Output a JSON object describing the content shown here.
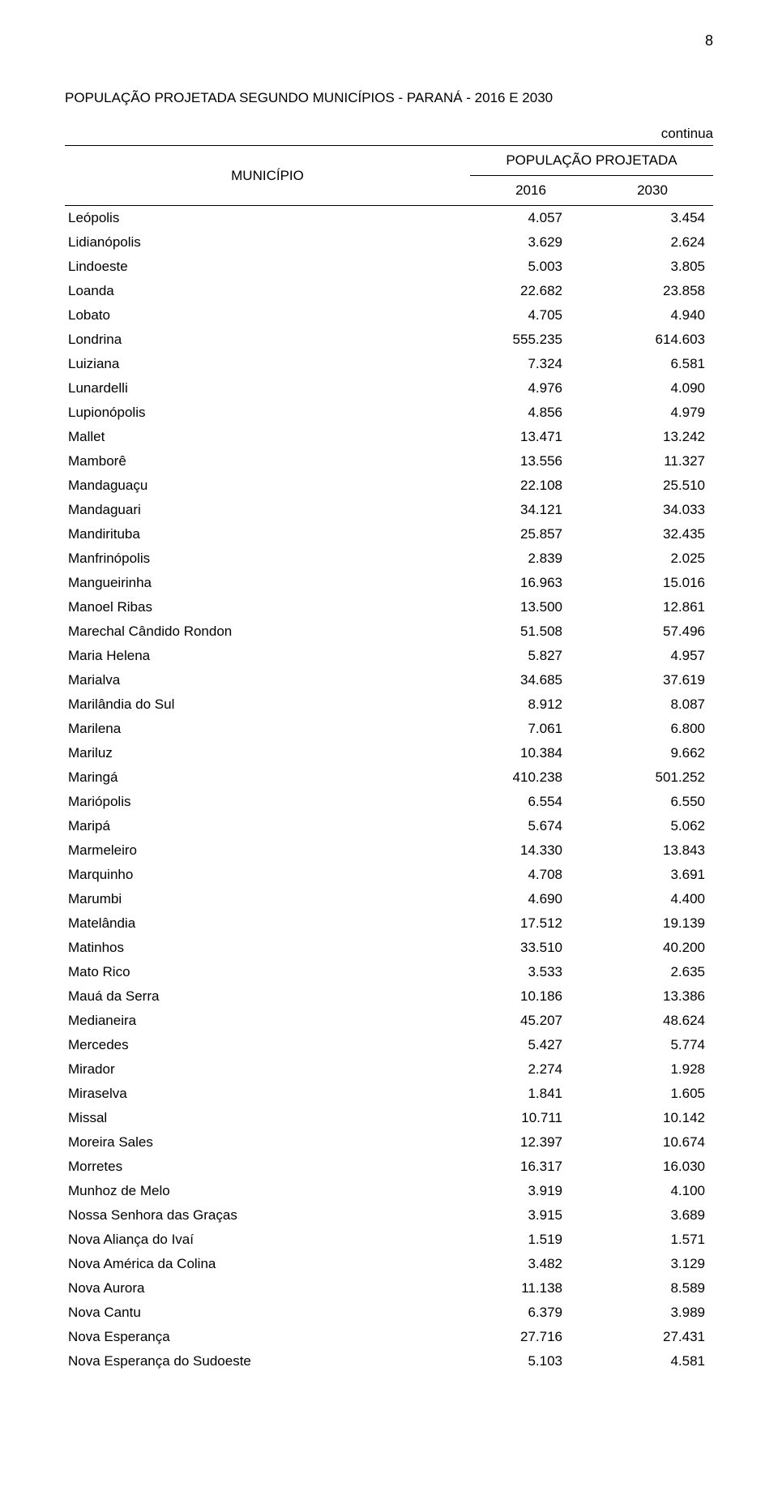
{
  "page_number": "8",
  "title": "POPULAÇÃO PROJETADA SEGUNDO MUNICÍPIOS - PARANÁ - 2016 E 2030",
  "continua_label": "continua",
  "header": {
    "municipio": "MUNICÍPIO",
    "populacao_projetada": "POPULAÇÃO PROJETADA",
    "year1": "2016",
    "year2": "2030"
  },
  "style": {
    "background_color": "#ffffff",
    "text_color": "#000000",
    "title_fontsize": 17,
    "body_fontsize": 17,
    "border_color": "#000000"
  },
  "rows": [
    {
      "name": "Leópolis",
      "y2016": "4.057",
      "y2030": "3.454"
    },
    {
      "name": "Lidianópolis",
      "y2016": "3.629",
      "y2030": "2.624"
    },
    {
      "name": "Lindoeste",
      "y2016": "5.003",
      "y2030": "3.805"
    },
    {
      "name": "Loanda",
      "y2016": "22.682",
      "y2030": "23.858"
    },
    {
      "name": "Lobato",
      "y2016": "4.705",
      "y2030": "4.940"
    },
    {
      "name": "Londrina",
      "y2016": "555.235",
      "y2030": "614.603"
    },
    {
      "name": "Luiziana",
      "y2016": "7.324",
      "y2030": "6.581"
    },
    {
      "name": "Lunardelli",
      "y2016": "4.976",
      "y2030": "4.090"
    },
    {
      "name": "Lupionópolis",
      "y2016": "4.856",
      "y2030": "4.979"
    },
    {
      "name": "Mallet",
      "y2016": "13.471",
      "y2030": "13.242"
    },
    {
      "name": "Mamborê",
      "y2016": "13.556",
      "y2030": "11.327"
    },
    {
      "name": "Mandaguaçu",
      "y2016": "22.108",
      "y2030": "25.510"
    },
    {
      "name": "Mandaguari",
      "y2016": "34.121",
      "y2030": "34.033"
    },
    {
      "name": "Mandirituba",
      "y2016": "25.857",
      "y2030": "32.435"
    },
    {
      "name": "Manfrinópolis",
      "y2016": "2.839",
      "y2030": "2.025"
    },
    {
      "name": "Mangueirinha",
      "y2016": "16.963",
      "y2030": "15.016"
    },
    {
      "name": "Manoel Ribas",
      "y2016": "13.500",
      "y2030": "12.861"
    },
    {
      "name": "Marechal Cândido Rondon",
      "y2016": "51.508",
      "y2030": "57.496"
    },
    {
      "name": "Maria Helena",
      "y2016": "5.827",
      "y2030": "4.957"
    },
    {
      "name": "Marialva",
      "y2016": "34.685",
      "y2030": "37.619"
    },
    {
      "name": "Marilândia do Sul",
      "y2016": "8.912",
      "y2030": "8.087"
    },
    {
      "name": "Marilena",
      "y2016": "7.061",
      "y2030": "6.800"
    },
    {
      "name": "Mariluz",
      "y2016": "10.384",
      "y2030": "9.662"
    },
    {
      "name": "Maringá",
      "y2016": "410.238",
      "y2030": "501.252"
    },
    {
      "name": "Mariópolis",
      "y2016": "6.554",
      "y2030": "6.550"
    },
    {
      "name": "Maripá",
      "y2016": "5.674",
      "y2030": "5.062"
    },
    {
      "name": "Marmeleiro",
      "y2016": "14.330",
      "y2030": "13.843"
    },
    {
      "name": "Marquinho",
      "y2016": "4.708",
      "y2030": "3.691"
    },
    {
      "name": "Marumbi",
      "y2016": "4.690",
      "y2030": "4.400"
    },
    {
      "name": "Matelândia",
      "y2016": "17.512",
      "y2030": "19.139"
    },
    {
      "name": "Matinhos",
      "y2016": "33.510",
      "y2030": "40.200"
    },
    {
      "name": "Mato Rico",
      "y2016": "3.533",
      "y2030": "2.635"
    },
    {
      "name": "Mauá da Serra",
      "y2016": "10.186",
      "y2030": "13.386"
    },
    {
      "name": "Medianeira",
      "y2016": "45.207",
      "y2030": "48.624"
    },
    {
      "name": "Mercedes",
      "y2016": "5.427",
      "y2030": "5.774"
    },
    {
      "name": "Mirador",
      "y2016": "2.274",
      "y2030": "1.928"
    },
    {
      "name": "Miraselva",
      "y2016": "1.841",
      "y2030": "1.605"
    },
    {
      "name": "Missal",
      "y2016": "10.711",
      "y2030": "10.142"
    },
    {
      "name": "Moreira Sales",
      "y2016": "12.397",
      "y2030": "10.674"
    },
    {
      "name": "Morretes",
      "y2016": "16.317",
      "y2030": "16.030"
    },
    {
      "name": "Munhoz de Melo",
      "y2016": "3.919",
      "y2030": "4.100"
    },
    {
      "name": "Nossa Senhora das Graças",
      "y2016": "3.915",
      "y2030": "3.689"
    },
    {
      "name": "Nova Aliança do Ivaí",
      "y2016": "1.519",
      "y2030": "1.571"
    },
    {
      "name": "Nova América da Colina",
      "y2016": "3.482",
      "y2030": "3.129"
    },
    {
      "name": "Nova Aurora",
      "y2016": "11.138",
      "y2030": "8.589"
    },
    {
      "name": "Nova Cantu",
      "y2016": "6.379",
      "y2030": "3.989"
    },
    {
      "name": "Nova Esperança",
      "y2016": "27.716",
      "y2030": "27.431"
    },
    {
      "name": "Nova Esperança do Sudoeste",
      "y2016": "5.103",
      "y2030": "4.581"
    }
  ]
}
